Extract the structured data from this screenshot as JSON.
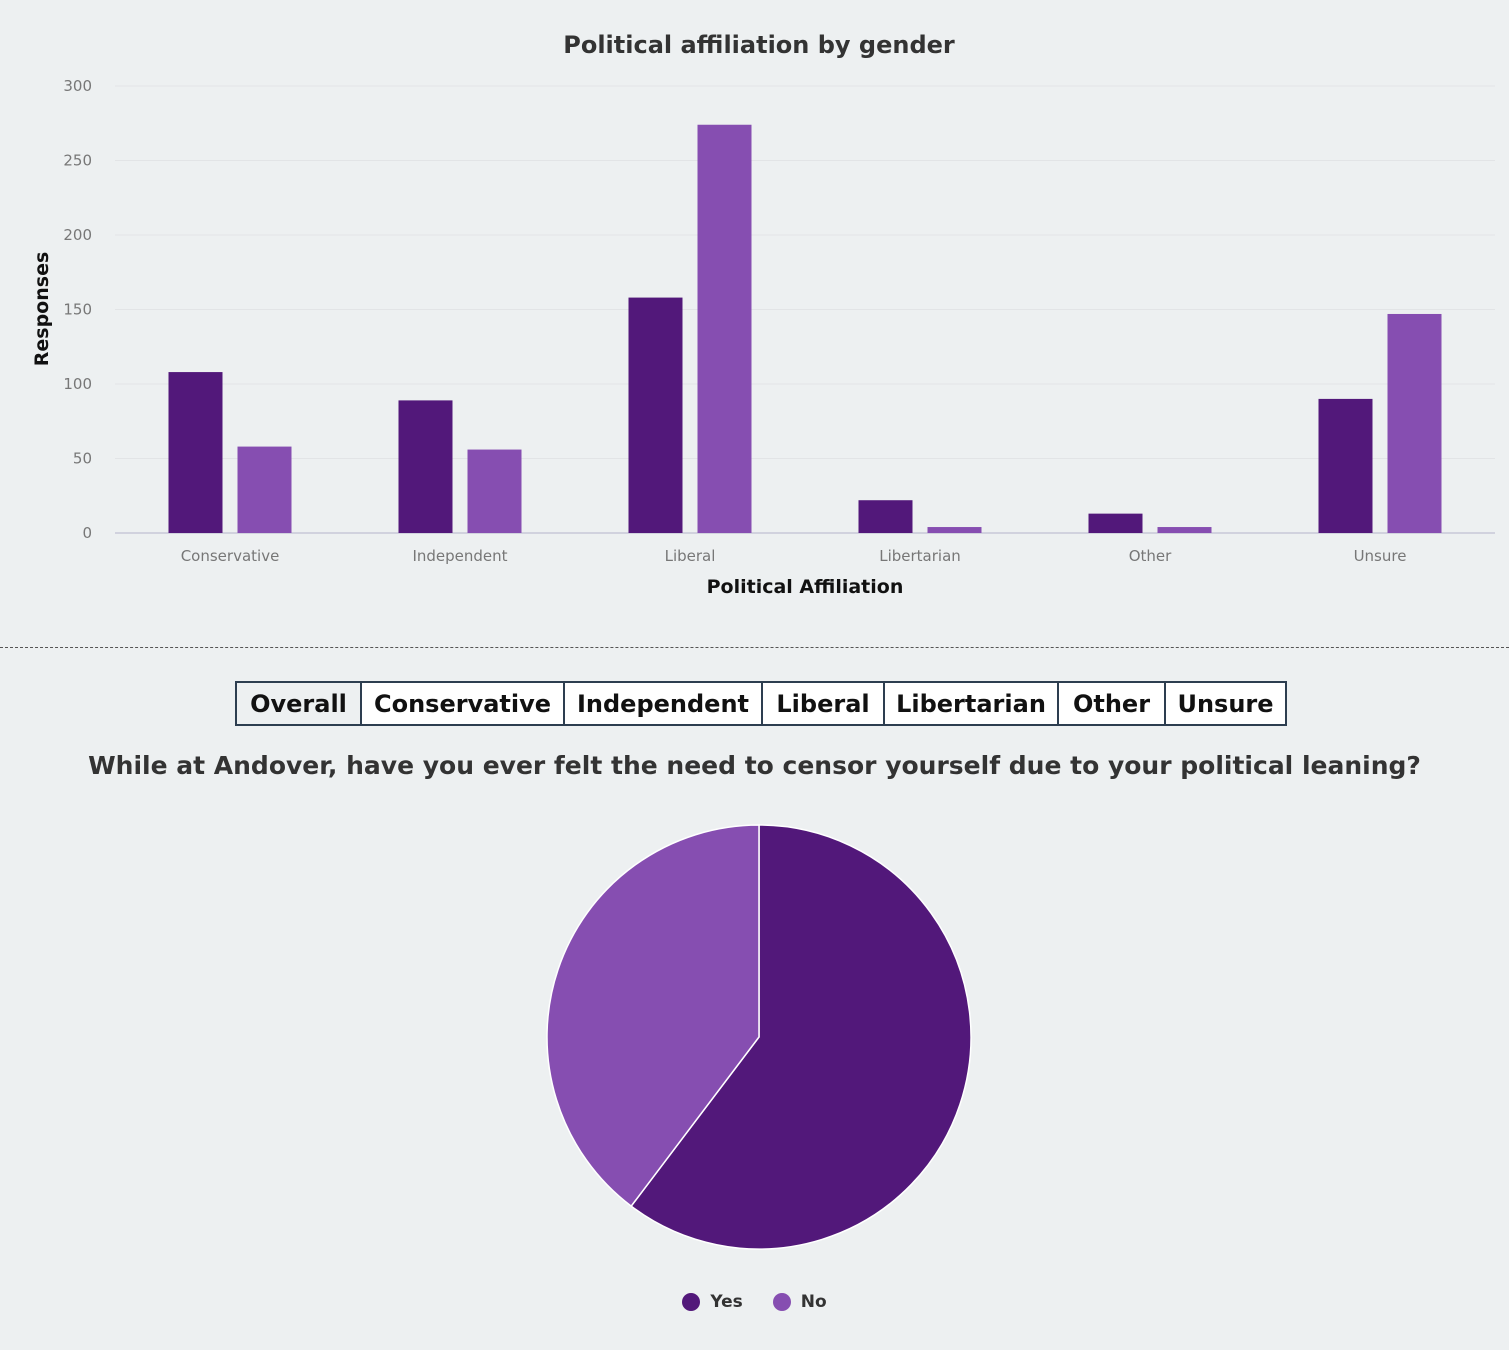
{
  "chart_data": [
    {
      "type": "bar",
      "title": "Political affiliation by gender",
      "xlabel": "Political Affiliation",
      "ylabel": "Responses",
      "ylim": [
        0,
        300
      ],
      "yticks": [
        "0",
        "50",
        "100",
        "150",
        "200",
        "250",
        "300"
      ],
      "categories": [
        "Conservative",
        "Independent",
        "Liberal",
        "Libertarian",
        "Other",
        "Unsure"
      ],
      "series": [
        {
          "values": [
            108,
            89,
            158,
            22,
            13,
            90
          ],
          "color": "#52187a"
        },
        {
          "values": [
            58,
            56,
            274,
            4,
            4,
            147
          ],
          "color": "#864eb1"
        }
      ],
      "grid": true,
      "legend": "none"
    },
    {
      "type": "pie",
      "title": "While at Andover, have you ever felt the need to censor yourself due to your political leaning?",
      "labels": [
        "Yes",
        "No"
      ],
      "values": [
        60.3,
        39.7
      ],
      "colors": [
        "#52187a",
        "#864eb1"
      ],
      "legend": "bottom"
    }
  ],
  "tabs": [
    {
      "label": "Overall",
      "active": true
    },
    {
      "label": "Conservative",
      "active": false
    },
    {
      "label": "Independent",
      "active": false
    },
    {
      "label": "Liberal",
      "active": false
    },
    {
      "label": "Libertarian",
      "active": false
    },
    {
      "label": "Other",
      "active": false
    },
    {
      "label": "Unsure",
      "active": false
    }
  ]
}
